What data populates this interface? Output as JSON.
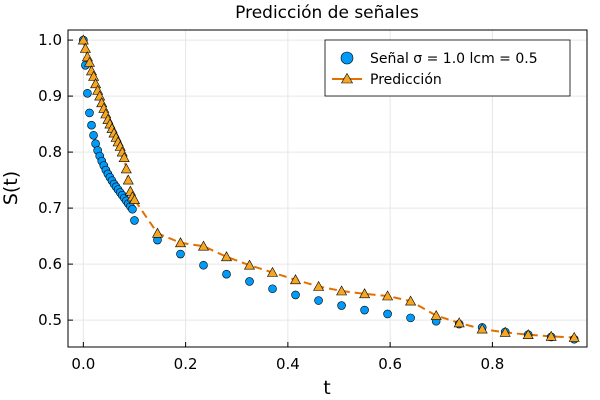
{
  "chart_data": {
    "type": "scatter",
    "title": "Predicción de señales",
    "xlabel": "t",
    "ylabel": "S(t)",
    "xlim": [
      -0.03,
      0.985
    ],
    "ylim": [
      0.452,
      1.018
    ],
    "xticks": [
      0.0,
      0.2,
      0.4,
      0.6,
      0.8
    ],
    "xtick_labels": [
      "0.0",
      "0.2",
      "0.4",
      "0.6",
      "0.8"
    ],
    "yticks": [
      0.5,
      0.6,
      0.7,
      0.8,
      0.9,
      1.0
    ],
    "ytick_labels": [
      "0.5",
      "0.6",
      "0.7",
      "0.8",
      "0.9",
      "1.0"
    ],
    "grid": true,
    "legend_position": "top-right",
    "series": [
      {
        "name": "Señal σ = 1.0 lcm = 0.5",
        "kind": "scatter",
        "marker": "circle",
        "color": "#009af9",
        "x": [
          0.0,
          0.004,
          0.008,
          0.012,
          0.016,
          0.02,
          0.024,
          0.028,
          0.032,
          0.036,
          0.04,
          0.044,
          0.048,
          0.052,
          0.056,
          0.06,
          0.064,
          0.068,
          0.072,
          0.076,
          0.08,
          0.084,
          0.088,
          0.092,
          0.096,
          0.1,
          0.145,
          0.19,
          0.235,
          0.28,
          0.325,
          0.37,
          0.415,
          0.46,
          0.505,
          0.55,
          0.595,
          0.64,
          0.69,
          0.735,
          0.78,
          0.825,
          0.87,
          0.915,
          0.96
        ],
        "y": [
          1.0,
          0.955,
          0.905,
          0.87,
          0.848,
          0.83,
          0.815,
          0.803,
          0.793,
          0.784,
          0.776,
          0.768,
          0.761,
          0.755,
          0.749,
          0.743,
          0.738,
          0.733,
          0.728,
          0.723,
          0.718,
          0.713,
          0.708,
          0.703,
          0.698,
          0.678,
          0.643,
          0.618,
          0.598,
          0.582,
          0.569,
          0.556,
          0.545,
          0.535,
          0.526,
          0.518,
          0.511,
          0.504,
          0.498,
          0.493,
          0.487,
          0.479,
          0.474,
          0.47,
          0.466
        ]
      },
      {
        "name": "Predicción",
        "kind": "line+marker",
        "marker": "triangle",
        "line_style": "dashed",
        "color": "#e26f00",
        "marker_fill": "#f5a623",
        "x": [
          0.0,
          0.004,
          0.008,
          0.012,
          0.016,
          0.02,
          0.024,
          0.028,
          0.032,
          0.036,
          0.04,
          0.044,
          0.048,
          0.052,
          0.056,
          0.06,
          0.064,
          0.068,
          0.072,
          0.076,
          0.08,
          0.084,
          0.088,
          0.092,
          0.096,
          0.1,
          0.145,
          0.19,
          0.235,
          0.28,
          0.325,
          0.37,
          0.415,
          0.46,
          0.505,
          0.55,
          0.595,
          0.64,
          0.69,
          0.735,
          0.78,
          0.825,
          0.87,
          0.915,
          0.96
        ],
        "y": [
          1.0,
          0.985,
          0.97,
          0.96,
          0.945,
          0.935,
          0.922,
          0.91,
          0.9,
          0.888,
          0.878,
          0.868,
          0.858,
          0.85,
          0.842,
          0.834,
          0.826,
          0.818,
          0.81,
          0.8,
          0.79,
          0.77,
          0.75,
          0.73,
          0.72,
          0.715,
          0.655,
          0.638,
          0.632,
          0.613,
          0.598,
          0.585,
          0.572,
          0.56,
          0.552,
          0.547,
          0.543,
          0.534,
          0.508,
          0.495,
          0.484,
          0.478,
          0.474,
          0.471,
          0.469
        ]
      }
    ]
  }
}
